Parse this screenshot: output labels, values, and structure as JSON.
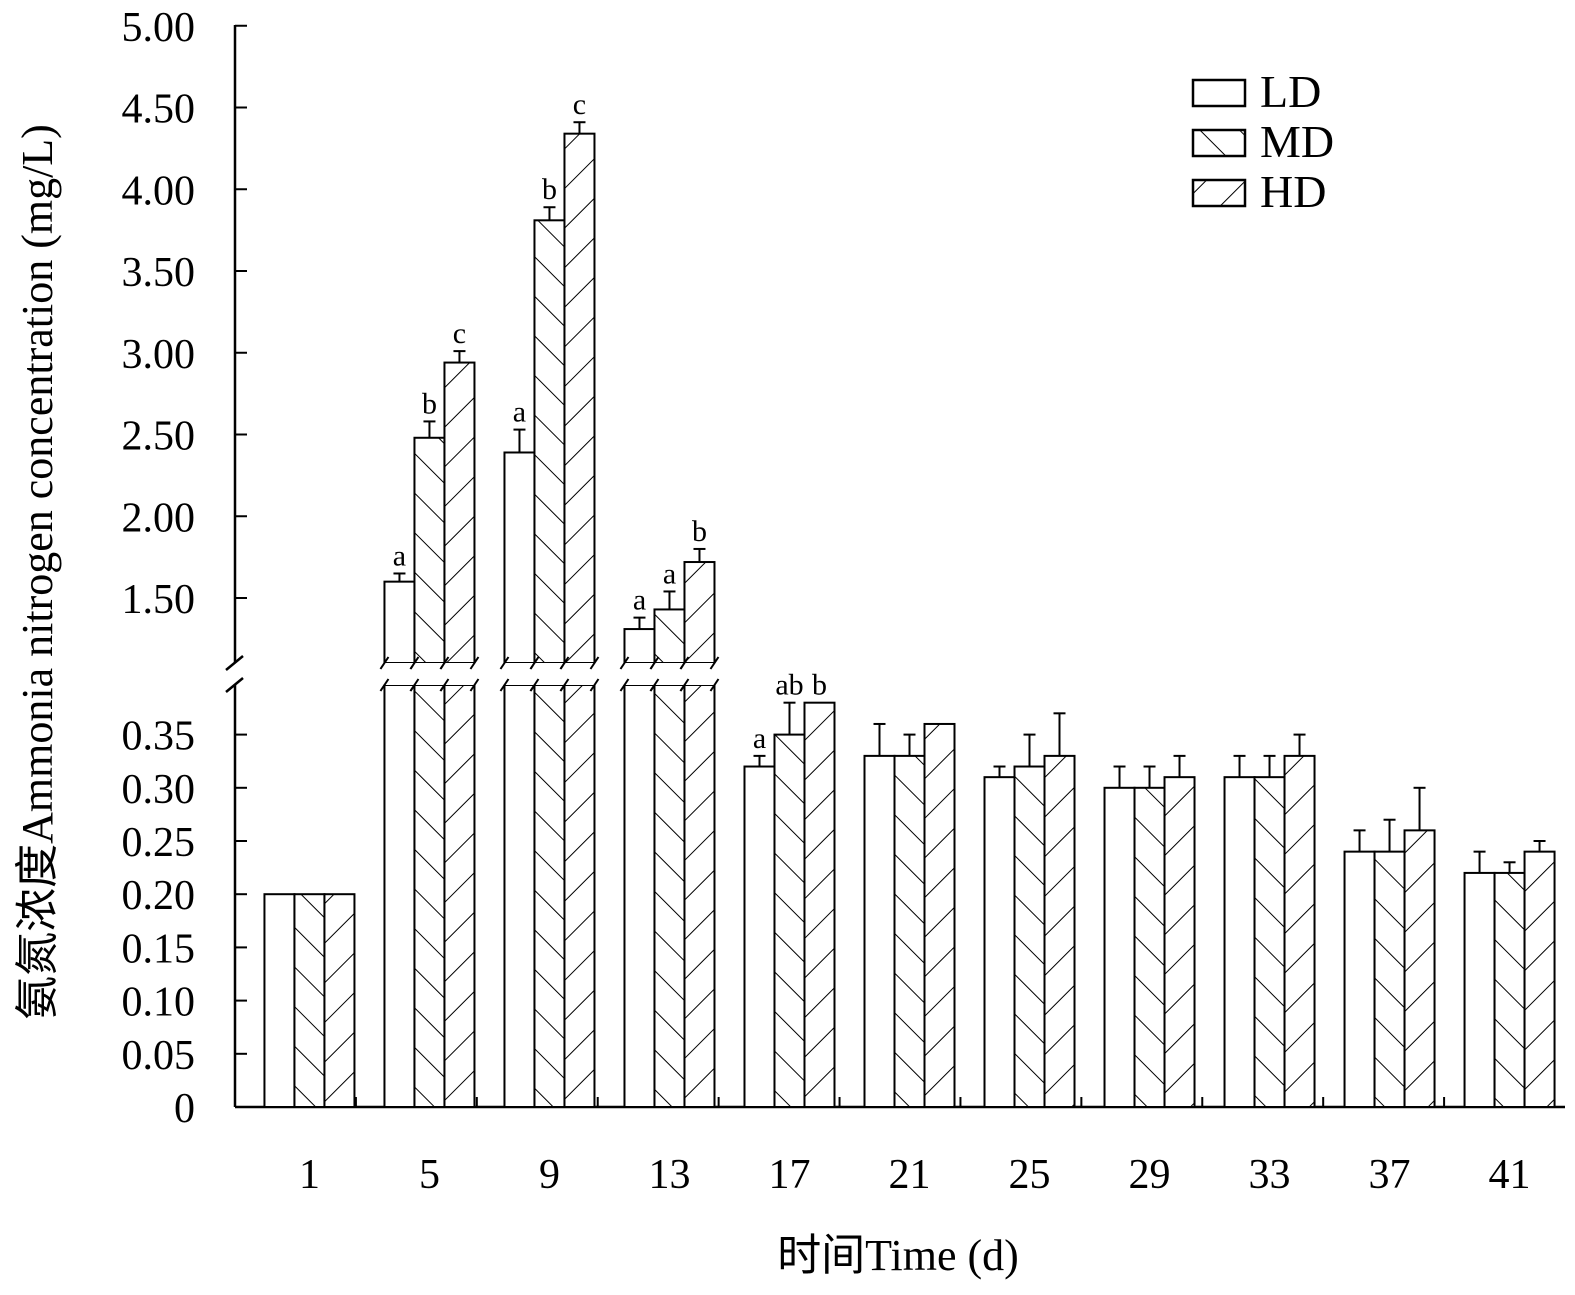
{
  "chart_data": {
    "type": "bar",
    "xlabel": "时间Time (d)",
    "ylabel": "氨氮浓度Ammonia nitrogen concentration (mg/L)",
    "categories": [
      "1",
      "5",
      "9",
      "13",
      "17",
      "21",
      "25",
      "29",
      "33",
      "37",
      "41"
    ],
    "series": [
      {
        "name": "LD",
        "pattern": "none",
        "values": [
          0.2,
          1.6,
          2.39,
          1.31,
          0.32,
          0.33,
          0.31,
          0.3,
          0.31,
          0.24,
          0.22
        ],
        "errors": [
          0,
          0.05,
          0.14,
          0.07,
          0.01,
          0.03,
          0.01,
          0.02,
          0.02,
          0.02,
          0.02
        ],
        "labels": [
          "",
          "a",
          "a",
          "a",
          "a",
          "",
          "",
          "",
          "",
          "",
          ""
        ]
      },
      {
        "name": "MD",
        "pattern": "forward",
        "values": [
          0.2,
          2.48,
          3.81,
          1.43,
          0.35,
          0.33,
          0.32,
          0.3,
          0.31,
          0.24,
          0.22
        ],
        "errors": [
          0,
          0.1,
          0.08,
          0.11,
          0.03,
          0.02,
          0.03,
          0.02,
          0.02,
          0.03,
          0.01
        ],
        "labels": [
          "",
          "b",
          "b",
          "a",
          "ab",
          "",
          "",
          "",
          "",
          "",
          ""
        ]
      },
      {
        "name": "HD",
        "pattern": "backward",
        "values": [
          0.2,
          2.94,
          4.34,
          1.72,
          0.38,
          0.36,
          0.33,
          0.31,
          0.33,
          0.26,
          0.24
        ],
        "errors": [
          0,
          0.07,
          0.07,
          0.08,
          0,
          0,
          0.04,
          0.02,
          0.02,
          0.04,
          0.01
        ],
        "labels": [
          "",
          "c",
          "c",
          "b",
          "b",
          "",
          "",
          "",
          "",
          "",
          ""
        ]
      }
    ],
    "y_axis": {
      "broken": true,
      "lower_range": [
        0,
        0.38
      ],
      "lower_ticks": [
        "0",
        "0.05",
        "0.10",
        "0.15",
        "0.20",
        "0.25",
        "0.30",
        "0.35"
      ],
      "upper_range": [
        1.1,
        5.0
      ],
      "upper_ticks": [
        "1.50",
        "2.00",
        "2.50",
        "3.00",
        "3.50",
        "4.00",
        "4.50",
        "5.00"
      ]
    },
    "legend": {
      "position": "top-right",
      "entries": [
        "LD",
        "MD",
        "HD"
      ]
    },
    "colors": {
      "bar_fill": "#ffffff",
      "stroke": "#000000"
    }
  }
}
